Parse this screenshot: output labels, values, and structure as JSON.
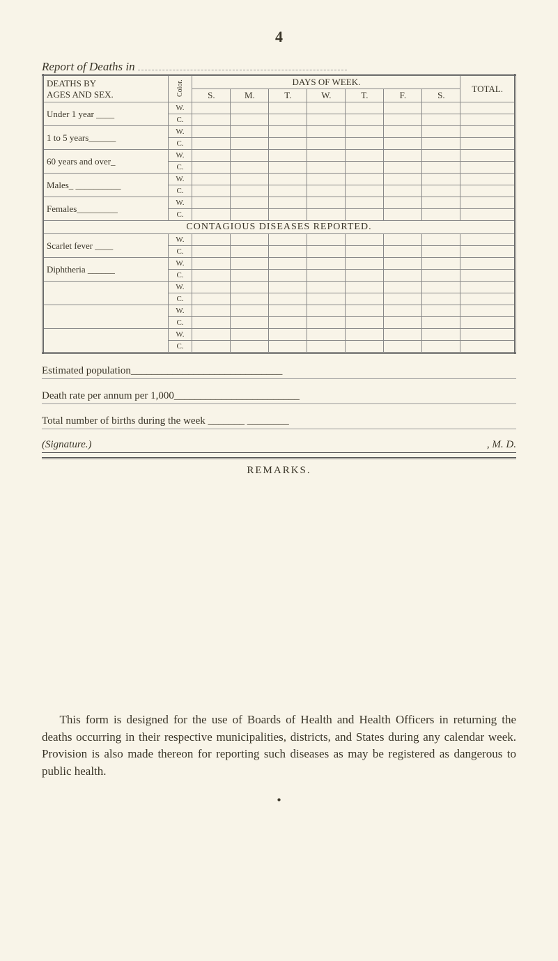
{
  "page_number": "4",
  "report_title_prefix": "Report of Deaths in",
  "header": {
    "deaths_by": "DEATHS BY",
    "ages_and_sex": "AGES AND SEX.",
    "color": "Color.",
    "days_of_week": "DAYS OF WEEK.",
    "total": "TOTAL.",
    "days": [
      "S.",
      "M.",
      "T.",
      "W.",
      "T.",
      "F.",
      "S."
    ]
  },
  "rows": {
    "under1": "Under 1 year ____",
    "oneTo5": "1 to 5 years______",
    "sixty": "60 years and over_",
    "males": "Males_ __________",
    "females": "Females_________"
  },
  "wc": {
    "w": "W.",
    "c": "C."
  },
  "contagious_header": "CONTAGIOUS DISEASES REPORTED.",
  "contagious_rows": {
    "scarlet": "Scarlet fever ____",
    "diphtheria": "Diphtheria ______"
  },
  "lines": {
    "estimated": "Estimated population_____________________________",
    "deathrate": "Death rate per annum per 1,000________________________",
    "totalbirths": "Total number of births during the week _______ ________"
  },
  "signature_label": "(Signature.)",
  "signature_suffix": ", M. D.",
  "remarks": "REMARKS.",
  "paragraph": "This form is designed for the use of Boards of Health and Health Officers in returning the deaths occurring in their respective municipalities, districts, and States during any calendar week. Provision is also made thereon for reporting such diseases as may be registered as dangerous to public health."
}
